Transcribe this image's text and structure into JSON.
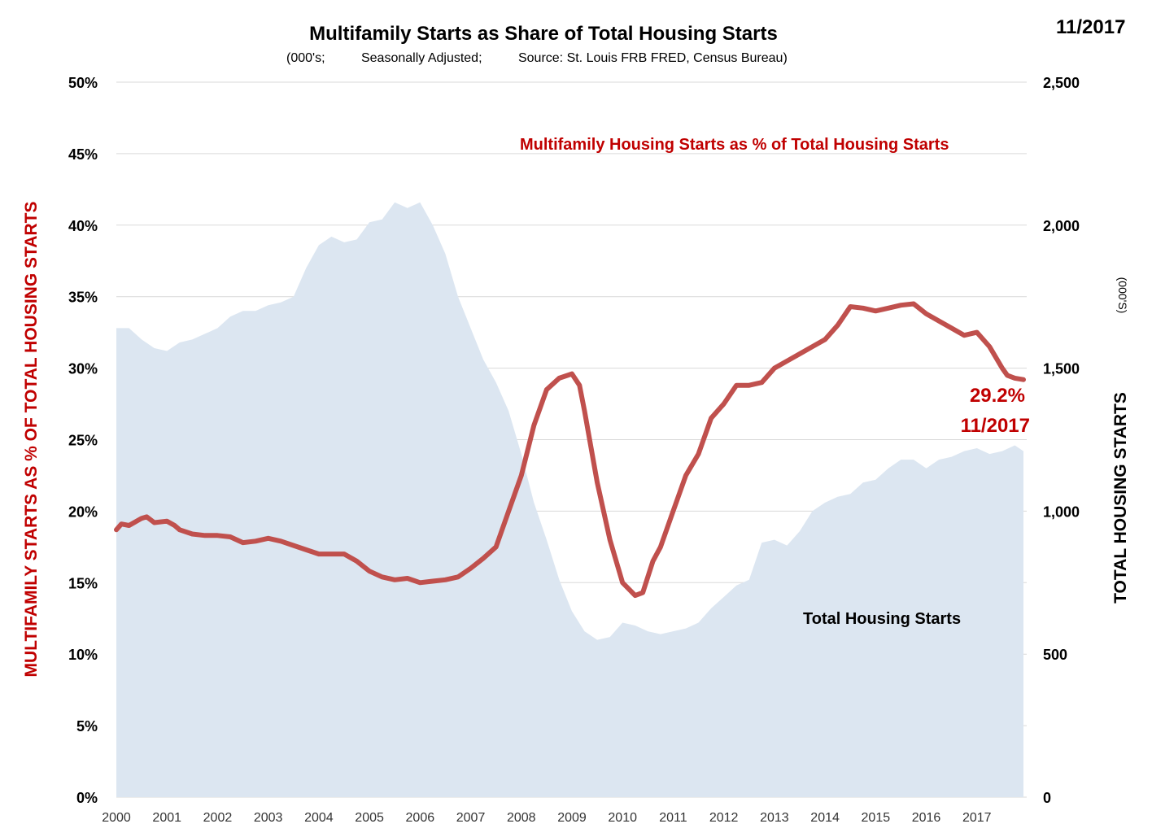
{
  "chart_data": {
    "type": "line+area",
    "title": "Multifamily Starts as Share of Total Housing Starts",
    "subtitle": "(000's;          Seasonally Adjusted;          Source: St. Louis FRB FRED, Census Bureau)",
    "date_label": "11/2017",
    "y_left_label": "MULTIFAMILY  STARTS AS % OF TOTAL HOUSING STARTS",
    "y_right_label": "TOTAL HOUSING STARTS",
    "y_right_unit": "(000'S)",
    "y_left_range": [
      0,
      50
    ],
    "y_right_range": [
      0,
      2500
    ],
    "x_range": [
      2000,
      2017.92
    ],
    "y_left_ticks": [
      "0%",
      "5%",
      "10%",
      "15%",
      "20%",
      "25%",
      "30%",
      "35%",
      "40%",
      "45%",
      "50%"
    ],
    "y_right_ticks": [
      "0",
      "500",
      "1,000",
      "1,500",
      "2,000",
      "2,500"
    ],
    "x_ticks": [
      "2000",
      "2001",
      "2002",
      "2003",
      "2004",
      "2005",
      "2006",
      "2007",
      "2008",
      "2009",
      "2010",
      "2011",
      "2012",
      "2013",
      "2014",
      "2015",
      "2016",
      "2017"
    ],
    "series": [
      {
        "name": "Multifamily  Housing Starts as % of Total Housing Starts",
        "axis": "left",
        "color": "#c0504d",
        "points": [
          [
            2000.0,
            18.7
          ],
          [
            2000.1,
            19.1
          ],
          [
            2000.25,
            19.0
          ],
          [
            2000.5,
            19.5
          ],
          [
            2000.6,
            19.6
          ],
          [
            2000.75,
            19.2
          ],
          [
            2001.0,
            19.3
          ],
          [
            2001.15,
            19.0
          ],
          [
            2001.25,
            18.7
          ],
          [
            2001.5,
            18.4
          ],
          [
            2001.75,
            18.3
          ],
          [
            2002.0,
            18.3
          ],
          [
            2002.25,
            18.2
          ],
          [
            2002.5,
            17.8
          ],
          [
            2002.75,
            17.9
          ],
          [
            2003.0,
            18.1
          ],
          [
            2003.25,
            17.9
          ],
          [
            2003.5,
            17.6
          ],
          [
            2003.75,
            17.3
          ],
          [
            2004.0,
            17.0
          ],
          [
            2004.25,
            17.0
          ],
          [
            2004.5,
            17.0
          ],
          [
            2004.75,
            16.5
          ],
          [
            2005.0,
            15.8
          ],
          [
            2005.25,
            15.4
          ],
          [
            2005.5,
            15.2
          ],
          [
            2005.75,
            15.3
          ],
          [
            2006.0,
            15.0
          ],
          [
            2006.25,
            15.1
          ],
          [
            2006.5,
            15.2
          ],
          [
            2006.75,
            15.4
          ],
          [
            2007.0,
            16.0
          ],
          [
            2007.25,
            16.7
          ],
          [
            2007.5,
            17.5
          ],
          [
            2007.75,
            20.0
          ],
          [
            2008.0,
            22.5
          ],
          [
            2008.25,
            26.0
          ],
          [
            2008.5,
            28.5
          ],
          [
            2008.75,
            29.3
          ],
          [
            2009.0,
            29.6
          ],
          [
            2009.15,
            28.8
          ],
          [
            2009.25,
            27.0
          ],
          [
            2009.5,
            22.0
          ],
          [
            2009.75,
            18.0
          ],
          [
            2010.0,
            15.0
          ],
          [
            2010.25,
            14.1
          ],
          [
            2010.4,
            14.3
          ],
          [
            2010.6,
            16.5
          ],
          [
            2010.75,
            17.5
          ],
          [
            2011.0,
            20.0
          ],
          [
            2011.25,
            22.5
          ],
          [
            2011.5,
            24.0
          ],
          [
            2011.75,
            26.5
          ],
          [
            2012.0,
            27.5
          ],
          [
            2012.25,
            28.8
          ],
          [
            2012.5,
            28.8
          ],
          [
            2012.75,
            29.0
          ],
          [
            2013.0,
            30.0
          ],
          [
            2013.25,
            30.5
          ],
          [
            2013.5,
            31.0
          ],
          [
            2013.75,
            31.5
          ],
          [
            2014.0,
            32.0
          ],
          [
            2014.25,
            33.0
          ],
          [
            2014.5,
            34.3
          ],
          [
            2014.75,
            34.2
          ],
          [
            2015.0,
            34.0
          ],
          [
            2015.25,
            34.2
          ],
          [
            2015.5,
            34.4
          ],
          [
            2015.75,
            34.5
          ],
          [
            2016.0,
            33.8
          ],
          [
            2016.25,
            33.3
          ],
          [
            2016.5,
            32.8
          ],
          [
            2016.75,
            32.3
          ],
          [
            2017.0,
            32.5
          ],
          [
            2017.25,
            31.5
          ],
          [
            2017.5,
            30.0
          ],
          [
            2017.6,
            29.5
          ],
          [
            2017.75,
            29.3
          ],
          [
            2017.92,
            29.2
          ]
        ]
      },
      {
        "name": "Total Housing Starts",
        "axis": "right",
        "color": "#dce6f1",
        "points": [
          [
            2000.0,
            1640
          ],
          [
            2000.25,
            1640
          ],
          [
            2000.5,
            1600
          ],
          [
            2000.75,
            1570
          ],
          [
            2001.0,
            1560
          ],
          [
            2001.25,
            1590
          ],
          [
            2001.5,
            1600
          ],
          [
            2001.75,
            1620
          ],
          [
            2002.0,
            1640
          ],
          [
            2002.25,
            1680
          ],
          [
            2002.5,
            1700
          ],
          [
            2002.75,
            1700
          ],
          [
            2003.0,
            1720
          ],
          [
            2003.25,
            1730
          ],
          [
            2003.5,
            1750
          ],
          [
            2003.75,
            1850
          ],
          [
            2004.0,
            1930
          ],
          [
            2004.25,
            1960
          ],
          [
            2004.5,
            1940
          ],
          [
            2004.75,
            1950
          ],
          [
            2005.0,
            2010
          ],
          [
            2005.25,
            2020
          ],
          [
            2005.5,
            2080
          ],
          [
            2005.75,
            2060
          ],
          [
            2006.0,
            2080
          ],
          [
            2006.25,
            2000
          ],
          [
            2006.5,
            1900
          ],
          [
            2006.75,
            1750
          ],
          [
            2007.0,
            1640
          ],
          [
            2007.25,
            1530
          ],
          [
            2007.5,
            1450
          ],
          [
            2007.75,
            1350
          ],
          [
            2008.0,
            1200
          ],
          [
            2008.25,
            1030
          ],
          [
            2008.5,
            900
          ],
          [
            2008.75,
            760
          ],
          [
            2009.0,
            650
          ],
          [
            2009.25,
            580
          ],
          [
            2009.5,
            550
          ],
          [
            2009.75,
            560
          ],
          [
            2010.0,
            610
          ],
          [
            2010.25,
            600
          ],
          [
            2010.5,
            580
          ],
          [
            2010.75,
            570
          ],
          [
            2011.0,
            580
          ],
          [
            2011.25,
            590
          ],
          [
            2011.5,
            610
          ],
          [
            2011.75,
            660
          ],
          [
            2012.0,
            700
          ],
          [
            2012.25,
            740
          ],
          [
            2012.5,
            760
          ],
          [
            2012.75,
            890
          ],
          [
            2013.0,
            900
          ],
          [
            2013.25,
            880
          ],
          [
            2013.5,
            930
          ],
          [
            2013.75,
            1000
          ],
          [
            2014.0,
            1030
          ],
          [
            2014.25,
            1050
          ],
          [
            2014.5,
            1060
          ],
          [
            2014.75,
            1100
          ],
          [
            2015.0,
            1110
          ],
          [
            2015.25,
            1150
          ],
          [
            2015.5,
            1180
          ],
          [
            2015.75,
            1180
          ],
          [
            2016.0,
            1150
          ],
          [
            2016.25,
            1180
          ],
          [
            2016.5,
            1190
          ],
          [
            2016.75,
            1210
          ],
          [
            2017.0,
            1220
          ],
          [
            2017.25,
            1200
          ],
          [
            2017.5,
            1210
          ],
          [
            2017.75,
            1230
          ],
          [
            2017.92,
            1210
          ]
        ]
      }
    ],
    "annotations": {
      "red_series_label": "Multifamily  Housing Starts as % of Total Housing Starts",
      "area_series_label": "Total Housing Starts",
      "last_value": "29.2%",
      "last_date": "11/2017"
    }
  }
}
